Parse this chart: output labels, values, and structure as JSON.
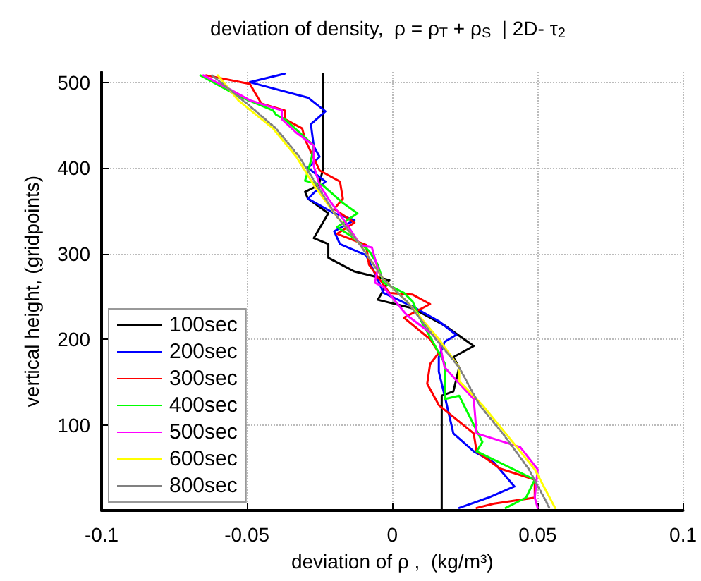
{
  "chart_data": {
    "type": "line",
    "title": "deviation of density,  ρ = ρ$_{T}$ + ρ$_{S}$  | 2D- τ$_{2}$",
    "xlabel": "deviation of ρ ,  (kg/m³)",
    "ylabel": "vertical height, (gridpoints)",
    "xlim": [
      -0.1,
      0.1
    ],
    "xticks": [
      -0.1,
      -0.05,
      0,
      0.05,
      0.1
    ],
    "ylim": [
      0,
      512
    ],
    "yticks": [
      100,
      200,
      300,
      400,
      500
    ],
    "grid": true,
    "legend": "bottom left",
    "marker": "none",
    "series": [
      {
        "name": "100sec",
        "color": "#000000",
        "line_style": "solid",
        "x": [
          -0.0239,
          -0.0239,
          -0.0253,
          -0.03,
          -0.029,
          -0.022,
          -0.027,
          -0.022,
          -0.022,
          -0.013,
          -0.001,
          -0.005,
          0.007,
          0.018,
          0.028,
          0.021,
          0.023,
          0.021,
          0.017,
          0.017
        ],
        "values": [
          510,
          397,
          380,
          372,
          364,
          347,
          318,
          311,
          295,
          279,
          269,
          246,
          236,
          216,
          192,
          179,
          167,
          139,
          134,
          0
        ]
      },
      {
        "name": "200sec",
        "color": "#0000ff",
        "line_style": "solid",
        "x": [
          -0.037,
          -0.049,
          -0.029,
          -0.023,
          -0.028,
          -0.027,
          -0.025,
          -0.029,
          -0.023,
          -0.029,
          -0.02,
          -0.013,
          -0.02,
          -0.018,
          -0.009,
          -0.006,
          -0.003,
          0.007,
          0.016,
          0.022,
          0.018,
          0.016,
          0.016,
          0.018,
          0.021,
          0.028,
          0.035,
          0.042,
          0.033,
          0.023
        ],
        "values": [
          510,
          500,
          482,
          466,
          451,
          425,
          413,
          400,
          384,
          364,
          347,
          339,
          326,
          311,
          298,
          277,
          254,
          238,
          221,
          205,
          197,
          179,
          162,
          134,
          90,
          69,
          56,
          28,
          15,
          3
        ]
      },
      {
        "name": "300sec",
        "color": "#ff0000",
        "line_style": "solid",
        "x": [
          -0.064,
          -0.049,
          -0.045,
          -0.037,
          -0.037,
          -0.031,
          -0.03,
          -0.025,
          -0.018,
          -0.017,
          -0.02,
          -0.013,
          -0.019,
          -0.009,
          -0.008,
          -0.001,
          0.007,
          0.013,
          0.004,
          0.013,
          0.016,
          0.013,
          0.012,
          0.016,
          0.028,
          0.029,
          0.037,
          0.049,
          0.049,
          0.035,
          0.029
        ],
        "values": [
          508,
          498,
          475,
          467,
          457,
          446,
          433,
          397,
          384,
          364,
          352,
          336,
          323,
          310,
          287,
          254,
          252,
          241,
          225,
          200,
          184,
          171,
          148,
          123,
          90,
          69,
          49,
          36,
          15,
          8,
          3
        ]
      },
      {
        "name": "400sec",
        "color": "#00ff00",
        "line_style": "solid",
        "x": [
          -0.066,
          -0.053,
          -0.041,
          -0.04,
          -0.037,
          -0.027,
          -0.028,
          -0.03,
          -0.024,
          -0.017,
          -0.012,
          -0.019,
          -0.014,
          -0.008,
          -0.005,
          -0.003,
          0.004,
          0.007,
          0.01,
          0.018,
          0.018,
          0.023,
          0.031,
          0.029,
          0.049,
          0.046,
          0.039
        ],
        "values": [
          508,
          484,
          467,
          462,
          457,
          426,
          408,
          385,
          380,
          359,
          347,
          331,
          320,
          303,
          287,
          266,
          254,
          244,
          221,
          172,
          130,
          134,
          80,
          69,
          36,
          15,
          3
        ]
      },
      {
        "name": "500sec",
        "color": "#ff00ff",
        "line_style": "solid",
        "x": [
          -0.065,
          -0.056,
          -0.049,
          -0.038,
          -0.038,
          -0.033,
          -0.027,
          -0.027,
          -0.025,
          -0.022,
          -0.016,
          -0.011,
          -0.007,
          -0.005,
          -0.006,
          -0.003,
          0.005,
          0.016,
          0.018,
          0.028,
          0.029,
          0.044,
          0.05,
          0.049,
          0.05
        ],
        "values": [
          508,
          492,
          479,
          467,
          457,
          441,
          426,
          402,
          380,
          364,
          336,
          310,
          307,
          282,
          266,
          261,
          228,
          200,
          167,
          130,
          90,
          74,
          48,
          15,
          3
        ]
      },
      {
        "name": "600sec",
        "color": "#ffff00",
        "line_style": "solid",
        "x": [
          -0.06,
          -0.053,
          -0.041,
          -0.033,
          -0.027,
          -0.019,
          -0.011,
          -0.003,
          0.005,
          0.016,
          0.023,
          0.023,
          0.031,
          0.039,
          0.049,
          0.056
        ],
        "values": [
          508,
          479,
          446,
          413,
          380,
          343,
          310,
          270,
          244,
          200,
          167,
          151,
          123,
          90,
          48,
          3
        ]
      },
      {
        "name": "800sec",
        "color": "#808080",
        "line_style": "dotted",
        "x": [
          -0.062,
          -0.05,
          -0.04,
          -0.032,
          -0.026,
          -0.019,
          -0.011,
          -0.003,
          0.005,
          0.015,
          0.023,
          0.03,
          0.038,
          0.047,
          0.053,
          0.054
        ],
        "values": [
          508,
          475,
          446,
          413,
          380,
          343,
          310,
          270,
          244,
          200,
          167,
          123,
          90,
          48,
          10,
          3
        ]
      }
    ]
  }
}
